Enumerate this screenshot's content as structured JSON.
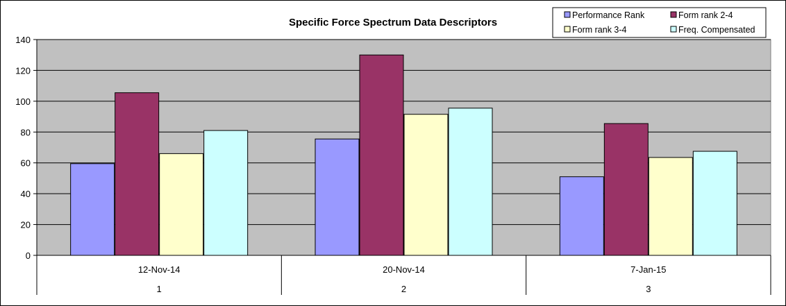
{
  "chart_data": {
    "type": "bar",
    "title": "Specific Force Spectrum Data Descriptors",
    "xlabel": "",
    "ylabel": "",
    "categories": [
      "12-Nov-14",
      "20-Nov-14",
      "7-Jan-15"
    ],
    "category_index_labels": [
      "1",
      "2",
      "3"
    ],
    "ylim": [
      0,
      140
    ],
    "y_ticks": [
      "0",
      "20",
      "40",
      "60",
      "80",
      "100",
      "120",
      "140"
    ],
    "grid": true,
    "legend_position": "top-right",
    "series": [
      {
        "name": "Performance Rank",
        "color": "#9999ff",
        "values": [
          59.5,
          75.5,
          51
        ]
      },
      {
        "name": "Form rank 2-4",
        "color": "#993366",
        "values": [
          105.5,
          130,
          85.5
        ]
      },
      {
        "name": "Form rank 3-4",
        "color": "#ffffcc",
        "values": [
          66,
          91.5,
          63.5
        ]
      },
      {
        "name": "Freq. Compensated",
        "color": "#ccffff",
        "values": [
          81,
          95.5,
          67.5
        ]
      }
    ],
    "plot_background": "#c0c0c0"
  }
}
